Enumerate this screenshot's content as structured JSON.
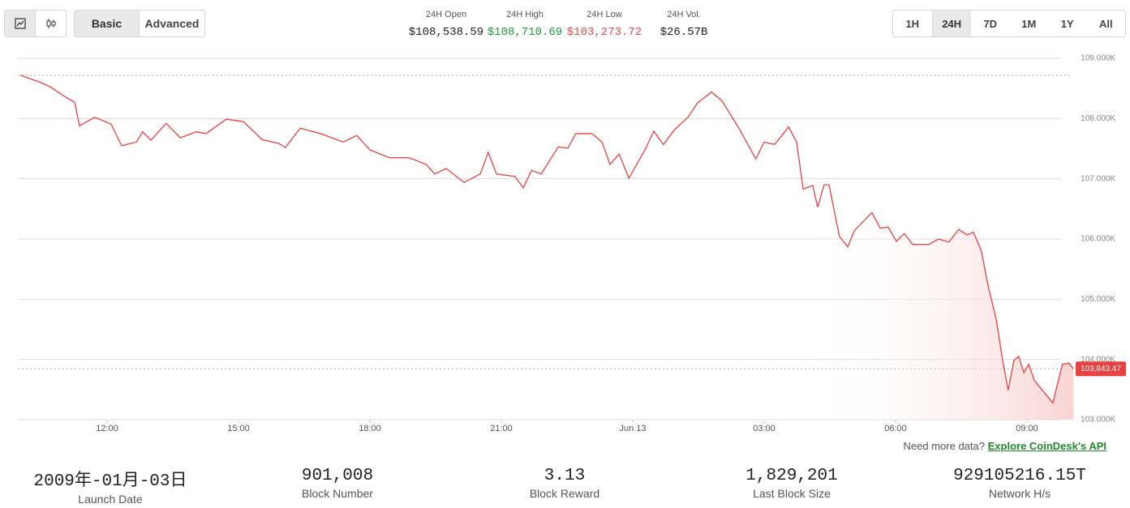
{
  "toolbar": {
    "modes": [
      "Basic",
      "Advanced"
    ]
  },
  "summary": [
    {
      "label": "24H Open",
      "value": "$108,538.59"
    },
    {
      "label": "24H High",
      "value": "$108,710.69"
    },
    {
      "label": "24H Low",
      "value": "$103,273.72"
    },
    {
      "label": "24H Vol.",
      "value": "$26.57B"
    }
  ],
  "ranges": [
    "1H",
    "24H",
    "7D",
    "1M",
    "1Y",
    "All"
  ],
  "chart_data": {
    "type": "line",
    "color": "#e8413f",
    "xlim": [
      10,
      34.1
    ],
    "xticks": [
      {
        "value": 12,
        "label": "12:00"
      },
      {
        "value": 15,
        "label": "15:00"
      },
      {
        "value": 18,
        "label": "18:00"
      },
      {
        "value": 21,
        "label": "21:00"
      },
      {
        "value": 24,
        "label": "Jun 13"
      },
      {
        "value": 27,
        "label": "03:00"
      },
      {
        "value": 30,
        "label": "06:00"
      },
      {
        "value": 33,
        "label": "09:00"
      }
    ],
    "ylim": [
      103000,
      109000
    ],
    "yticks": [
      {
        "value": 103000,
        "label": "103.000K"
      },
      {
        "value": 104000,
        "label": "104.000K"
      },
      {
        "value": 105000,
        "label": "105.000K"
      },
      {
        "value": 106000,
        "label": "106.000K"
      },
      {
        "value": 107000,
        "label": "107.000K"
      },
      {
        "value": 108000,
        "label": "108.000K"
      },
      {
        "value": 109000,
        "label": "109.000K"
      }
    ],
    "grid": true,
    "x": [
      10.02,
      10.48,
      10.72,
      11.0,
      11.26,
      11.37,
      11.72,
      12.09,
      12.33,
      12.67,
      12.81,
      13.0,
      13.35,
      13.67,
      14.04,
      14.26,
      14.72,
      15.11,
      15.54,
      15.91,
      16.07,
      16.41,
      16.87,
      17.39,
      17.7,
      18.0,
      18.44,
      18.89,
      19.28,
      19.48,
      19.74,
      20.15,
      20.52,
      20.7,
      20.89,
      21.31,
      21.5,
      21.69,
      21.91,
      22.3,
      22.52,
      22.7,
      23.07,
      23.3,
      23.48,
      23.69,
      23.91,
      24.28,
      24.48,
      24.7,
      24.96,
      25.26,
      25.48,
      25.8,
      26.04,
      26.44,
      26.81,
      27.0,
      27.24,
      27.56,
      27.74,
      27.89,
      28.11,
      28.22,
      28.37,
      28.48,
      28.72,
      28.91,
      29.06,
      29.46,
      29.65,
      29.83,
      30.02,
      30.2,
      30.39,
      30.76,
      30.98,
      31.22,
      31.44,
      31.63,
      31.78,
      31.96,
      32.11,
      32.3,
      32.43,
      32.57,
      32.7,
      32.81,
      32.93,
      33.04,
      33.17,
      33.35,
      33.59,
      33.81,
      33.96,
      34.06
    ],
    "values": [
      108720,
      108600,
      108520,
      108380,
      108270,
      107880,
      108020,
      107910,
      107550,
      107610,
      107780,
      107640,
      107920,
      107680,
      107780,
      107750,
      107990,
      107950,
      107650,
      107590,
      107520,
      107840,
      107750,
      107610,
      107720,
      107480,
      107350,
      107350,
      107240,
      107080,
      107170,
      106940,
      107080,
      107440,
      107080,
      107040,
      106850,
      107140,
      107080,
      107530,
      107510,
      107750,
      107750,
      107610,
      107240,
      107410,
      107010,
      107480,
      107790,
      107570,
      107820,
      108020,
      108260,
      108440,
      108290,
      107820,
      107330,
      107610,
      107570,
      107860,
      107610,
      106830,
      106890,
      106530,
      106900,
      106900,
      106040,
      105870,
      106140,
      106440,
      106180,
      106200,
      105960,
      106090,
      105910,
      105910,
      106000,
      105950,
      106160,
      106070,
      106110,
      105800,
      105230,
      104660,
      104050,
      103490,
      103980,
      104050,
      103780,
      103920,
      103650,
      103490,
      103280,
      103920,
      103940,
      103843.47
    ],
    "last_price_label": "103,843.47"
  },
  "more_data": {
    "text": "Need more data?",
    "link": "Explore CoinDesk's API"
  },
  "network_stats": [
    {
      "value": "2009年-01月-03日",
      "label": "Launch Date"
    },
    {
      "value": "901,008",
      "label": "Block Number"
    },
    {
      "value": "3.13",
      "label": "Block Reward"
    },
    {
      "value": "1,829,201",
      "label": "Last Block Size"
    },
    {
      "value": "929105216.15T",
      "label": "Network H/s"
    }
  ]
}
